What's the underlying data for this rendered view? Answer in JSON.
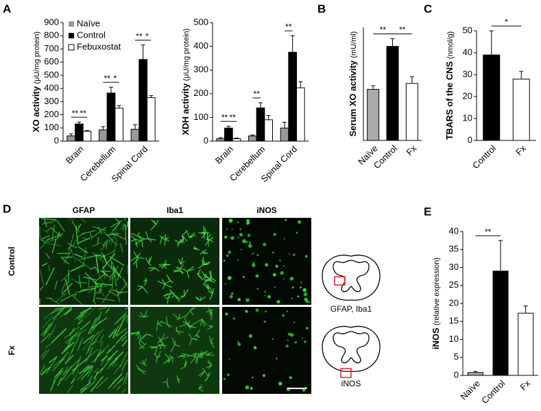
{
  "chart_data": [
    {
      "type": "bar",
      "ylabel": "XO activity",
      "ylabel_unit": "(μU/mg protein)",
      "categories": [
        "Brain",
        "Cerebellum",
        "Spinal Cord"
      ],
      "series": [
        {
          "name": "Naïve",
          "color": "#999999",
          "values": [
            40,
            85,
            90
          ],
          "errors": [
            15,
            25,
            35
          ]
        },
        {
          "name": "Control",
          "color": "#000000",
          "values": [
            130,
            365,
            620
          ],
          "errors": [
            15,
            45,
            110
          ]
        },
        {
          "name": "Febuxostat",
          "color": "#ffffff",
          "values": [
            75,
            250,
            330
          ],
          "errors": [
            5,
            20,
            15
          ]
        }
      ],
      "ylim": [
        0,
        900
      ],
      "yticks": [
        0,
        100,
        200,
        300,
        400,
        500,
        600,
        700,
        800,
        900
      ],
      "legend": "upper left",
      "significance": [
        {
          "label": "**",
          "category": "Brain",
          "between": [
            "Naïve",
            "Control"
          ]
        },
        {
          "label": "**",
          "category": "Brain",
          "between": [
            "Control",
            "Febuxostat"
          ]
        },
        {
          "label": "**",
          "category": "Cerebellum",
          "between": [
            "Naïve",
            "Control"
          ]
        },
        {
          "label": "*",
          "category": "Cerebellum",
          "between": [
            "Control",
            "Febuxostat"
          ]
        },
        {
          "label": "**",
          "category": "Spinal Cord",
          "between": [
            "Naïve",
            "Control"
          ]
        },
        {
          "label": "*",
          "category": "Spinal Cord",
          "between": [
            "Control",
            "Febuxostat"
          ]
        }
      ]
    },
    {
      "type": "bar",
      "ylabel": "XDH activity",
      "ylabel_unit": "(μU/mg protein)",
      "categories": [
        "Brain",
        "Cerebellum",
        "Spinal Cord"
      ],
      "series": [
        {
          "name": "Naïve",
          "color": "#999999",
          "values": [
            10,
            22,
            55
          ],
          "errors": [
            5,
            4,
            25
          ]
        },
        {
          "name": "Control",
          "color": "#000000",
          "values": [
            55,
            140,
            375
          ],
          "errors": [
            8,
            22,
            70
          ]
        },
        {
          "name": "Febuxostat",
          "color": "#ffffff",
          "values": [
            10,
            90,
            225
          ],
          "errors": [
            3,
            18,
            25
          ]
        }
      ],
      "ylim": [
        0,
        500
      ],
      "yticks": [
        0,
        100,
        200,
        300,
        400,
        500
      ],
      "significance": [
        {
          "label": "**",
          "category": "Brain",
          "between": [
            "Naïve",
            "Control"
          ]
        },
        {
          "label": "**",
          "category": "Brain",
          "between": [
            "Control",
            "Febuxostat"
          ]
        },
        {
          "label": "**",
          "category": "Cerebellum",
          "between": [
            "Naïve",
            "Control"
          ]
        },
        {
          "label": "**",
          "category": "Spinal Cord",
          "between": [
            "Naïve",
            "Control"
          ]
        }
      ]
    },
    {
      "type": "bar",
      "ylabel": "Serum XO activity",
      "ylabel_unit": "(mU/ml)",
      "categories": [
        "Naïve",
        "Control",
        "Fx"
      ],
      "values": [
        11.3,
        20.8,
        12.6
      ],
      "errors": [
        0.8,
        1.7,
        1.5
      ],
      "colors": [
        "#aaaaaa",
        "#000000",
        "#ffffff"
      ],
      "ylim": [
        0,
        25
      ],
      "significance": [
        {
          "label": "**",
          "between": [
            "Naïve",
            "Control"
          ]
        },
        {
          "label": "**",
          "between": [
            "Control",
            "Fx"
          ]
        }
      ]
    },
    {
      "type": "bar",
      "ylabel": "TBARS of  the CNS",
      "ylabel_unit": "(nmol/g)",
      "categories": [
        "Control",
        "Fx"
      ],
      "values": [
        39,
        28
      ],
      "errors": [
        11,
        3.5
      ],
      "colors": [
        "#000000",
        "#ffffff"
      ],
      "ylim": [
        0,
        50
      ],
      "yticks": [
        0,
        10,
        20,
        30,
        40,
        50
      ],
      "significance": [
        {
          "label": "*",
          "between": [
            "Control",
            "Fx"
          ]
        }
      ]
    },
    {
      "type": "bar",
      "ylabel": "iNOS",
      "ylabel_unit": "(relative expression)",
      "categories": [
        "Naïve",
        "Control",
        "Fx"
      ],
      "values": [
        0.8,
        29,
        17.3
      ],
      "errors": [
        0.3,
        8.5,
        2
      ],
      "colors": [
        "#aaaaaa",
        "#000000",
        "#ffffff"
      ],
      "ylim": [
        0,
        40
      ],
      "yticks": [
        0,
        5,
        10,
        15,
        20,
        25,
        30,
        35,
        40
      ],
      "significance": [
        {
          "label": "**",
          "between": [
            "Naïve",
            "Control"
          ]
        }
      ]
    }
  ],
  "panel_labels": [
    "A",
    "B",
    "C",
    "D",
    "E"
  ],
  "micrographs": {
    "columns": [
      "GFAP",
      "Iba1",
      "iNOS"
    ],
    "rows": [
      "Control",
      "Fx"
    ]
  },
  "diagrams": [
    "GFAP, Iba1",
    "iNOS"
  ]
}
